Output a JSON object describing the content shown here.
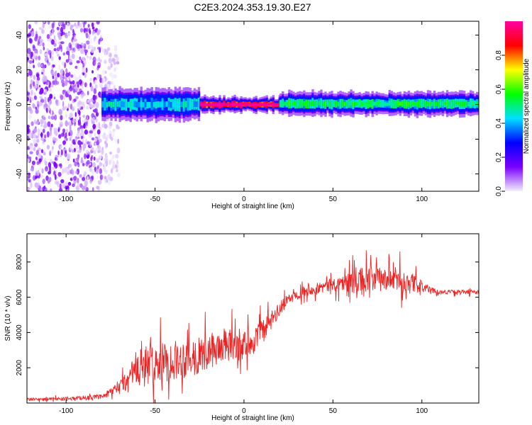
{
  "title": "C2E3.2024.353.19.30.E27",
  "colors": {
    "snr_line": "#ee2222",
    "colorbar": [
      "#f4f0ff",
      "#7a00ff",
      "#0000ff",
      "#00e0ff",
      "#00ff00",
      "#ffff00",
      "#ff0000",
      "#ff00a0"
    ]
  },
  "chart_data": [
    {
      "id": "spectrogram",
      "type": "heatmap",
      "xlabel": "Height of straight line (km)",
      "ylabel": "Frequency (Hz)",
      "xlim": [
        -122,
        132
      ],
      "ylim": [
        -50,
        48
      ],
      "xticks": [
        -100,
        -50,
        0,
        50,
        100
      ],
      "yticks": [
        -40,
        -20,
        0,
        20,
        40
      ],
      "colorbar": {
        "label": "Normalized spectral amplitude",
        "range": [
          0,
          1
        ],
        "ticks": [
          "0.0",
          "0.2",
          "0.4",
          "0.6",
          "0.8"
        ],
        "tick_values": [
          0.0,
          0.2,
          0.4,
          0.6,
          0.8
        ]
      },
      "regions": [
        {
          "x": [
            -122,
            -80
          ],
          "freq": [
            -50,
            48
          ],
          "amplitude": 0.08,
          "note_visible": false
        },
        {
          "x": [
            -80,
            -70
          ],
          "freq": [
            -45,
            35
          ],
          "amplitude": 0.04,
          "note_visible": false
        },
        {
          "x": [
            -80,
            -25
          ],
          "freq": [
            -5,
            5
          ],
          "amplitude": 0.35,
          "note_visible": false
        },
        {
          "x": [
            -25,
            20
          ],
          "freq": [
            -2,
            2
          ],
          "amplitude": 0.95,
          "note_visible": false
        },
        {
          "x": [
            20,
            132
          ],
          "freq": [
            -3,
            4
          ],
          "amplitude": 0.45,
          "note_visible": false
        }
      ]
    },
    {
      "id": "snr",
      "type": "line",
      "xlabel": "Height of straight line (km)",
      "ylabel": "SNR (10 * v/v)",
      "xlim": [
        -122,
        132
      ],
      "ylim": [
        0,
        9600
      ],
      "xticks": [
        -100,
        -50,
        0,
        50,
        100
      ],
      "yticks": [
        2000,
        4000,
        6000,
        8000
      ],
      "x": [
        -122,
        -100,
        -80,
        -75,
        -70,
        -65,
        -62,
        -60,
        -55,
        -50,
        -45,
        -40,
        -35,
        -30,
        -25,
        -20,
        -15,
        -10,
        -5,
        0,
        5,
        10,
        15,
        20,
        25,
        30,
        35,
        40,
        45,
        50,
        55,
        60,
        65,
        70,
        75,
        80,
        85,
        90,
        95,
        100,
        105,
        110,
        115,
        120,
        125,
        132
      ],
      "y": [
        200,
        250,
        350,
        600,
        900,
        1300,
        1700,
        1900,
        2100,
        2200,
        2300,
        2400,
        2500,
        2600,
        2700,
        2900,
        3100,
        3200,
        3300,
        3300,
        3500,
        4000,
        4600,
        5300,
        5900,
        6200,
        6400,
        6500,
        6600,
        6700,
        6800,
        6900,
        6900,
        7000,
        7000,
        7000,
        7000,
        6900,
        6800,
        6600,
        6400,
        6300,
        6300,
        6300,
        6300,
        6300
      ],
      "spread": [
        100,
        120,
        150,
        300,
        500,
        900,
        1400,
        1500,
        1500,
        1500,
        1400,
        1400,
        1400,
        1400,
        1300,
        1300,
        1200,
        1200,
        1200,
        1100,
        1000,
        900,
        700,
        500,
        400,
        400,
        400,
        400,
        450,
        500,
        600,
        800,
        1000,
        1000,
        900,
        800,
        900,
        1000,
        700,
        400,
        200,
        150,
        150,
        150,
        150,
        150
      ]
    }
  ]
}
